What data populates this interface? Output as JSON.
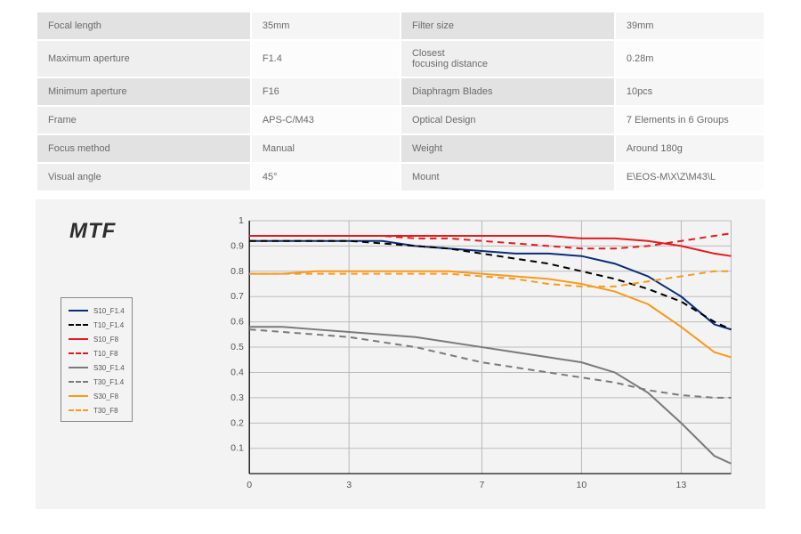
{
  "spec_table": {
    "rows": [
      {
        "l1": "Focal length",
        "v1": "35mm",
        "l2": "Filter size",
        "v2": "39mm"
      },
      {
        "l1": "Maximum aperture",
        "v1": "F1.4",
        "l2": "Closest\nfocusing distance",
        "v2": "0.28m"
      },
      {
        "l1": "Minimum aperture",
        "v1": "F16",
        "l2": "Diaphragm Blades",
        "v2": "10pcs"
      },
      {
        "l1": "Frame",
        "v1": "APS-C/M43",
        "l2": "Optical Design",
        "v2": "7 Elements in 6 Groups"
      },
      {
        "l1": "Focus method",
        "v1": "Manual",
        "l2": "Weight",
        "v2": "Around 180g"
      },
      {
        "l1": "Visual angle",
        "v1": "45°",
        "l2": "Mount",
        "v2": "E\\EOS-M\\X\\Z\\M43\\L"
      }
    ],
    "colors": {
      "label_bg": "#e2e2e2",
      "value_bg": "#f5f5f5",
      "alt_label_bg": "#efefef",
      "alt_value_bg": "#fcfcfc",
      "text": "#6a6a6a"
    }
  },
  "mtf": {
    "title": "MTF",
    "type": "line",
    "background_color": "#f3f3f3",
    "grid_color": "#bcbcbc",
    "axis_color": "#000000",
    "xlim": [
      0,
      14.5
    ],
    "ylim": [
      0,
      1
    ],
    "x_ticks": [
      0,
      3,
      7,
      10,
      13
    ],
    "y_ticks": [
      0.1,
      0.2,
      0.3,
      0.4,
      0.5,
      0.6,
      0.7,
      0.8,
      0.9,
      1
    ],
    "label_fontsize": 10,
    "title_fontsize": 24,
    "line_width": 2,
    "dash_pattern": "7 5",
    "series": [
      {
        "id": "S10_F1.4",
        "label": "S10_F1.4",
        "color": "#0a2d78",
        "style": "solid",
        "points": [
          [
            0,
            0.92
          ],
          [
            1,
            0.92
          ],
          [
            2,
            0.92
          ],
          [
            3,
            0.92
          ],
          [
            4,
            0.92
          ],
          [
            5,
            0.9
          ],
          [
            6,
            0.89
          ],
          [
            7,
            0.88
          ],
          [
            8,
            0.87
          ],
          [
            9,
            0.87
          ],
          [
            10,
            0.86
          ],
          [
            11,
            0.83
          ],
          [
            12,
            0.78
          ],
          [
            13,
            0.7
          ],
          [
            14,
            0.59
          ],
          [
            14.5,
            0.57
          ]
        ]
      },
      {
        "id": "T10_F1.4",
        "label": "T10_F1.4",
        "color": "#000000",
        "style": "dashed",
        "points": [
          [
            0,
            0.92
          ],
          [
            1,
            0.92
          ],
          [
            2,
            0.92
          ],
          [
            3,
            0.92
          ],
          [
            4,
            0.91
          ],
          [
            5,
            0.9
          ],
          [
            6,
            0.89
          ],
          [
            7,
            0.87
          ],
          [
            8,
            0.85
          ],
          [
            9,
            0.83
          ],
          [
            10,
            0.8
          ],
          [
            11,
            0.77
          ],
          [
            12,
            0.73
          ],
          [
            13,
            0.68
          ],
          [
            14,
            0.6
          ],
          [
            14.5,
            0.57
          ]
        ]
      },
      {
        "id": "S10_F8",
        "label": "S10_F8",
        "color": "#e41a1c",
        "style": "solid",
        "points": [
          [
            0,
            0.94
          ],
          [
            1,
            0.94
          ],
          [
            2,
            0.94
          ],
          [
            3,
            0.94
          ],
          [
            4,
            0.94
          ],
          [
            5,
            0.94
          ],
          [
            6,
            0.94
          ],
          [
            7,
            0.94
          ],
          [
            8,
            0.94
          ],
          [
            9,
            0.94
          ],
          [
            10,
            0.93
          ],
          [
            11,
            0.93
          ],
          [
            12,
            0.92
          ],
          [
            13,
            0.9
          ],
          [
            14,
            0.87
          ],
          [
            14.5,
            0.86
          ]
        ]
      },
      {
        "id": "T10_F8",
        "label": "T10_F8",
        "color": "#e41a1c",
        "style": "dashed",
        "points": [
          [
            0,
            0.94
          ],
          [
            1,
            0.94
          ],
          [
            2,
            0.94
          ],
          [
            3,
            0.94
          ],
          [
            4,
            0.94
          ],
          [
            5,
            0.93
          ],
          [
            6,
            0.93
          ],
          [
            7,
            0.92
          ],
          [
            8,
            0.91
          ],
          [
            9,
            0.9
          ],
          [
            10,
            0.89
          ],
          [
            11,
            0.89
          ],
          [
            12,
            0.9
          ],
          [
            13,
            0.92
          ],
          [
            14,
            0.94
          ],
          [
            14.5,
            0.95
          ]
        ]
      },
      {
        "id": "S30_F1.4",
        "label": "S30_F1.4",
        "color": "#7a7a7a",
        "style": "solid",
        "points": [
          [
            0,
            0.58
          ],
          [
            1,
            0.58
          ],
          [
            2,
            0.57
          ],
          [
            3,
            0.56
          ],
          [
            4,
            0.55
          ],
          [
            5,
            0.54
          ],
          [
            6,
            0.52
          ],
          [
            7,
            0.5
          ],
          [
            8,
            0.48
          ],
          [
            9,
            0.46
          ],
          [
            10,
            0.44
          ],
          [
            11,
            0.4
          ],
          [
            12,
            0.32
          ],
          [
            13,
            0.2
          ],
          [
            14,
            0.07
          ],
          [
            14.5,
            0.04
          ]
        ]
      },
      {
        "id": "T30_F1.4",
        "label": "T30_F1.4",
        "color": "#7a7a7a",
        "style": "dashed",
        "points": [
          [
            0,
            0.57
          ],
          [
            1,
            0.56
          ],
          [
            2,
            0.55
          ],
          [
            3,
            0.54
          ],
          [
            4,
            0.52
          ],
          [
            5,
            0.5
          ],
          [
            6,
            0.47
          ],
          [
            7,
            0.44
          ],
          [
            8,
            0.42
          ],
          [
            9,
            0.4
          ],
          [
            10,
            0.38
          ],
          [
            11,
            0.36
          ],
          [
            12,
            0.33
          ],
          [
            13,
            0.31
          ],
          [
            14,
            0.3
          ],
          [
            14.5,
            0.3
          ]
        ]
      },
      {
        "id": "S30_F8",
        "label": "S30_F8",
        "color": "#f59b1f",
        "style": "solid",
        "points": [
          [
            0,
            0.79
          ],
          [
            1,
            0.79
          ],
          [
            2,
            0.8
          ],
          [
            3,
            0.8
          ],
          [
            4,
            0.8
          ],
          [
            5,
            0.8
          ],
          [
            6,
            0.8
          ],
          [
            7,
            0.79
          ],
          [
            8,
            0.78
          ],
          [
            9,
            0.77
          ],
          [
            10,
            0.75
          ],
          [
            11,
            0.72
          ],
          [
            12,
            0.67
          ],
          [
            13,
            0.58
          ],
          [
            14,
            0.48
          ],
          [
            14.5,
            0.46
          ]
        ]
      },
      {
        "id": "T30_F8",
        "label": "T30_F8",
        "color": "#f59b1f",
        "style": "dashed",
        "points": [
          [
            0,
            0.79
          ],
          [
            1,
            0.79
          ],
          [
            2,
            0.79
          ],
          [
            3,
            0.79
          ],
          [
            4,
            0.79
          ],
          [
            5,
            0.79
          ],
          [
            6,
            0.79
          ],
          [
            7,
            0.78
          ],
          [
            8,
            0.77
          ],
          [
            9,
            0.75
          ],
          [
            10,
            0.74
          ],
          [
            11,
            0.74
          ],
          [
            12,
            0.76
          ],
          [
            13,
            0.78
          ],
          [
            14,
            0.8
          ],
          [
            14.5,
            0.8
          ]
        ]
      }
    ],
    "legend": [
      {
        "ref": "S10_F1.4"
      },
      {
        "ref": "T10_F1.4"
      },
      {
        "ref": "S10_F8"
      },
      {
        "ref": "T10_F8"
      },
      {
        "ref": "S30_F1.4"
      },
      {
        "ref": "T30_F1.4"
      },
      {
        "ref": "S30_F8"
      },
      {
        "ref": "T30_F8"
      }
    ]
  }
}
